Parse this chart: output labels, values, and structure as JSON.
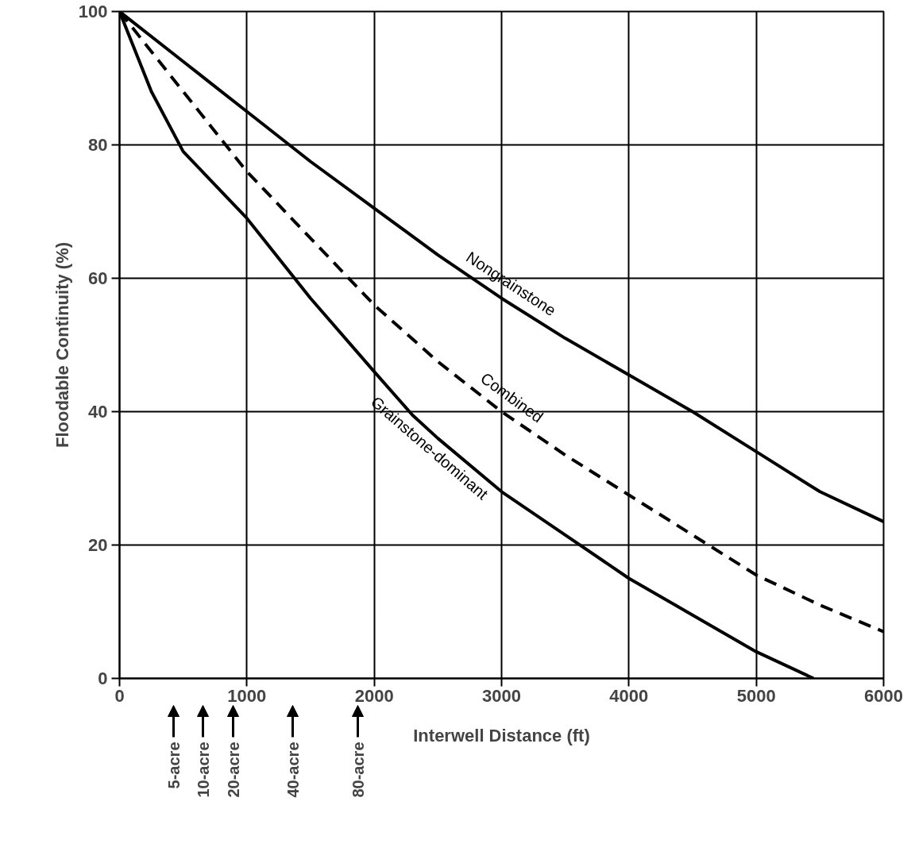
{
  "chart_data": {
    "type": "line",
    "xlabel": "Interwell Distance (ft)",
    "ylabel": "Floodable Continuity (%)",
    "xlim": [
      0,
      6000
    ],
    "ylim": [
      0,
      100
    ],
    "xticks": [
      0,
      1000,
      2000,
      3000,
      4000,
      5000,
      6000
    ],
    "yticks": [
      0,
      20,
      40,
      60,
      80,
      100
    ],
    "grid": true,
    "marker": "none",
    "line_style": "solid",
    "series": [
      {
        "name": "Nongrainstone",
        "color": "#000000",
        "x": [
          0,
          500,
          1000,
          1500,
          2000,
          2500,
          3000,
          3500,
          4000,
          4500,
          5000,
          5500,
          6000
        ],
        "values": [
          100,
          92.5,
          85,
          77.5,
          70.5,
          63.5,
          57,
          51,
          45.5,
          40,
          34,
          28,
          23.5
        ]
      },
      {
        "name": "Combined",
        "color": "#000000",
        "line_style": "dashed",
        "x": [
          0,
          500,
          1000,
          1500,
          2000,
          2500,
          3000,
          3500,
          4000,
          4500,
          5000,
          5500,
          6000
        ],
        "values": [
          100,
          88,
          76,
          66,
          56,
          47.5,
          40,
          33.5,
          27.5,
          21.5,
          15.5,
          11,
          7
        ]
      },
      {
        "name": "Grainstone-dominant",
        "color": "#000000",
        "x": [
          0,
          250,
          500,
          1000,
          1500,
          2000,
          2300,
          2500,
          3000,
          3500,
          4000,
          4500,
          5000,
          5450
        ],
        "values": [
          100,
          88,
          79,
          69,
          57,
          46,
          39.5,
          36,
          28,
          21.5,
          15,
          9.5,
          4,
          0
        ]
      }
    ],
    "annotations": [
      "5-acre",
      "10-acre",
      "20-acre",
      "40-acre",
      "80-acre"
    ]
  }
}
